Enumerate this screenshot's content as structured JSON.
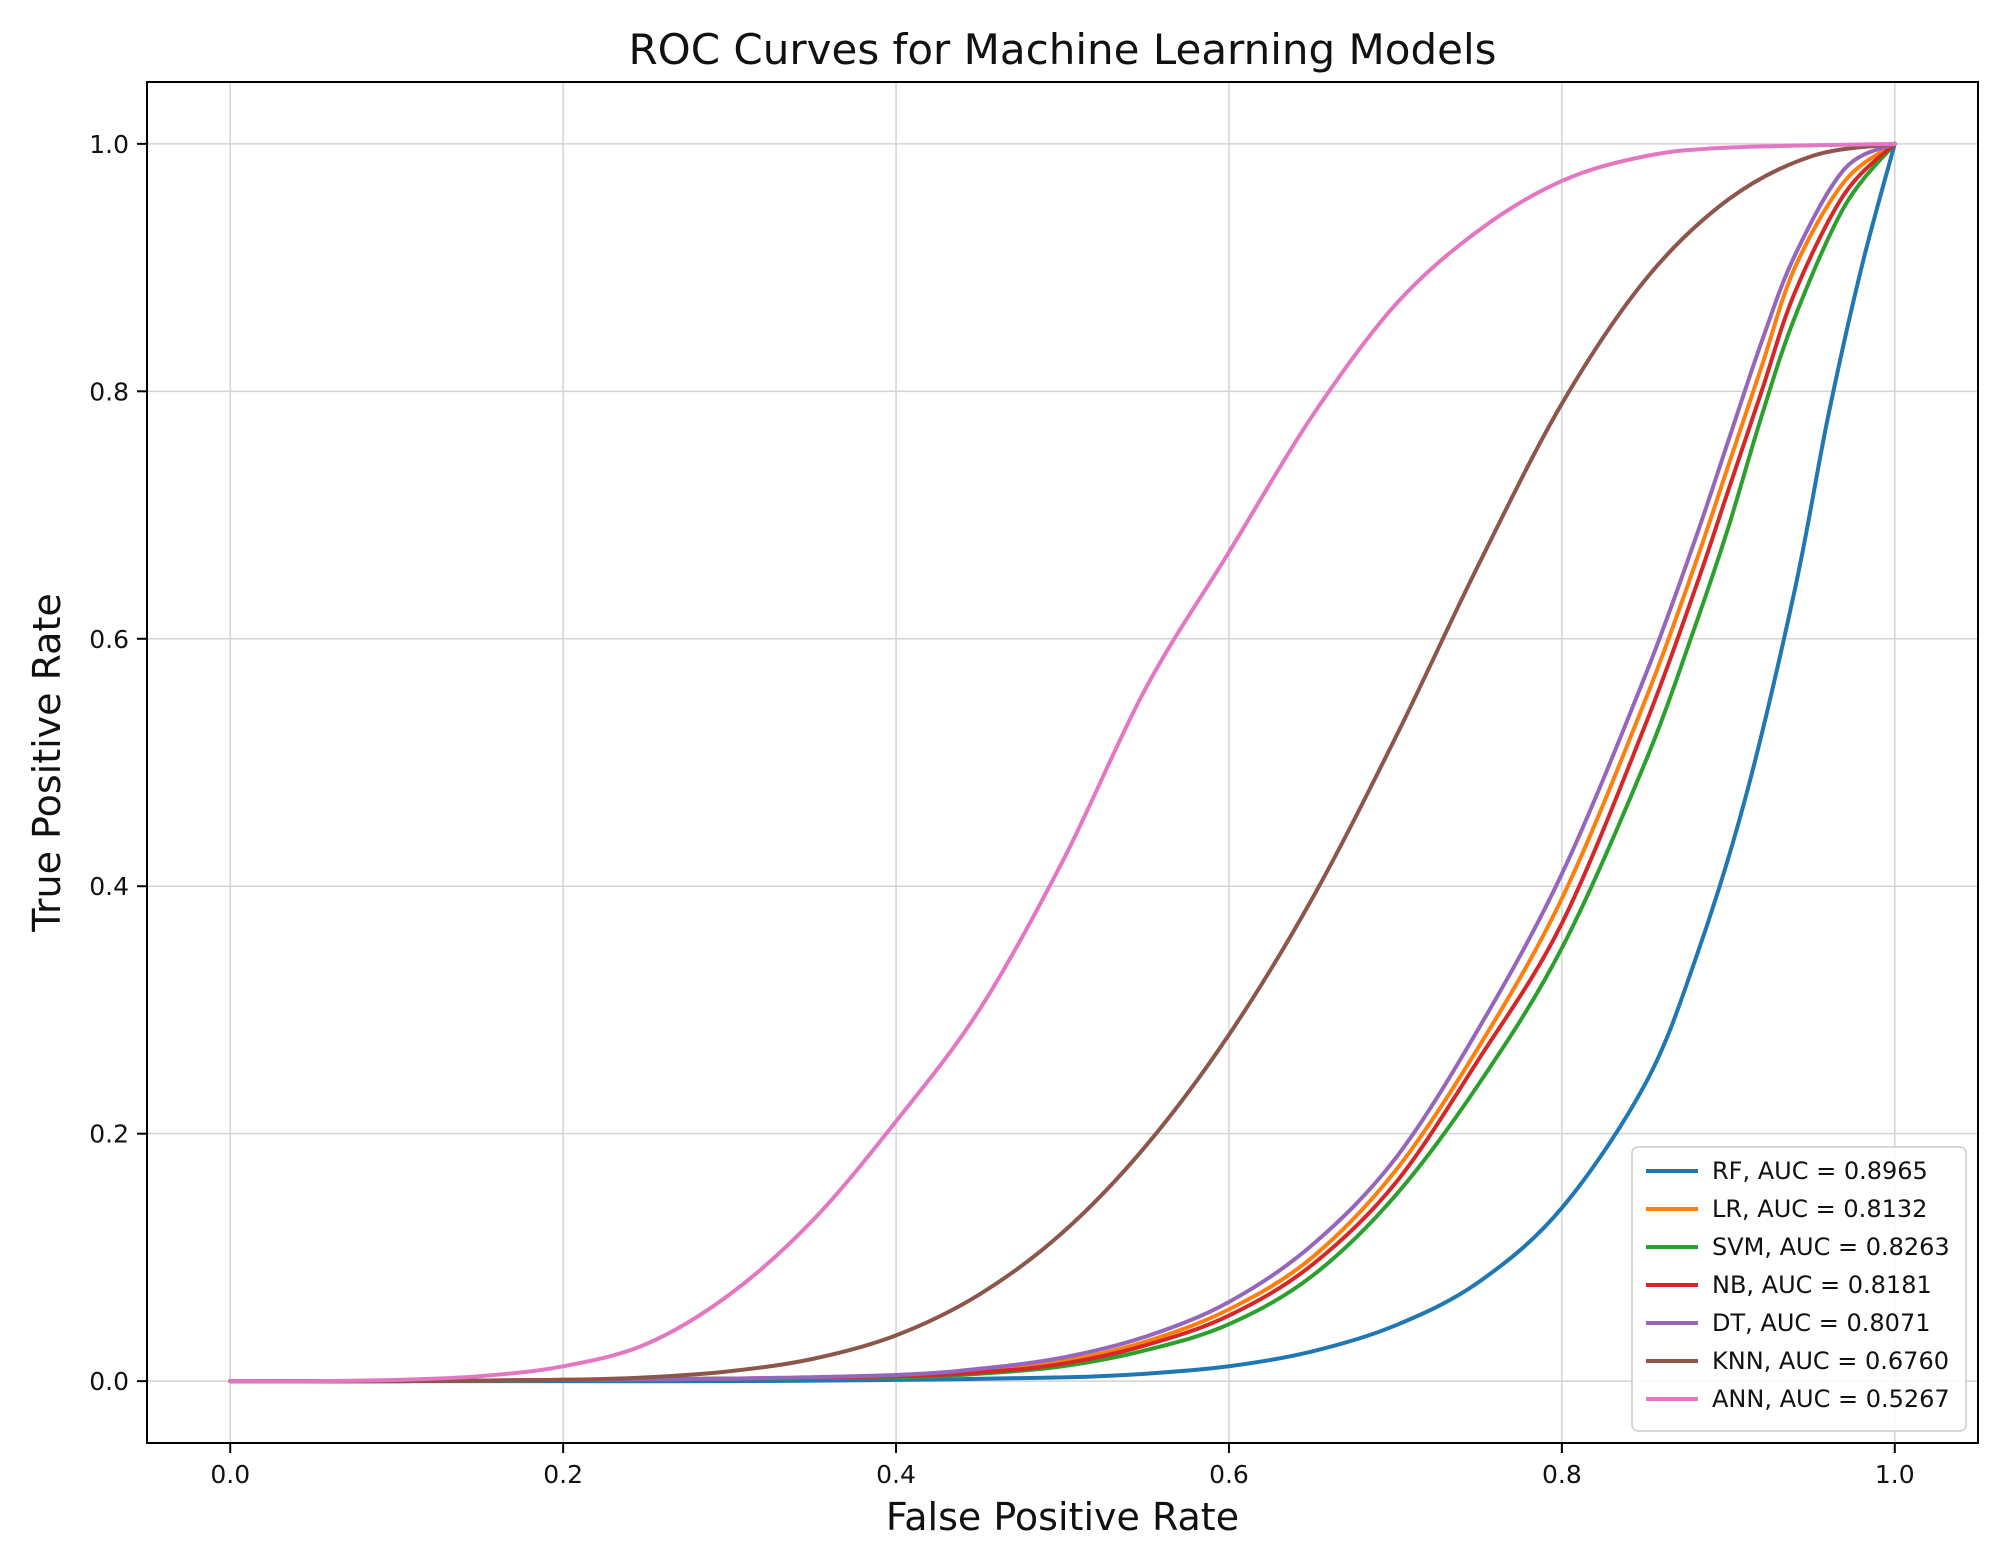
{
  "chart_data": {
    "type": "line",
    "title": "ROC Curves for Machine Learning Models",
    "xlabel": "False Positive Rate",
    "ylabel": "True Positive Rate",
    "xlim": [
      -0.05,
      1.05
    ],
    "ylim": [
      -0.05,
      1.05
    ],
    "xticks": [
      "0.0",
      "0.2",
      "0.4",
      "0.6",
      "0.8",
      "1.0"
    ],
    "yticks": [
      "0.0",
      "0.2",
      "0.4",
      "0.6",
      "0.8",
      "1.0"
    ],
    "grid": true,
    "legend_position": "lower-right",
    "series": [
      {
        "name": "RF, AUC = 0.8965",
        "color": "#1f77b4",
        "points": [
          [
            0,
            0
          ],
          [
            0.1,
            0
          ],
          [
            0.2,
            0
          ],
          [
            0.3,
            0
          ],
          [
            0.4,
            0.001
          ],
          [
            0.5,
            0.003
          ],
          [
            0.55,
            0.006
          ],
          [
            0.6,
            0.012
          ],
          [
            0.65,
            0.024
          ],
          [
            0.7,
            0.045
          ],
          [
            0.75,
            0.08
          ],
          [
            0.8,
            0.14
          ],
          [
            0.85,
            0.24
          ],
          [
            0.88,
            0.34
          ],
          [
            0.91,
            0.47
          ],
          [
            0.94,
            0.64
          ],
          [
            0.96,
            0.78
          ],
          [
            0.98,
            0.9
          ],
          [
            1.0,
            1.0
          ]
        ]
      },
      {
        "name": "LR, AUC = 0.8132",
        "color": "#ff7f0e",
        "points": [
          [
            0,
            0
          ],
          [
            0.1,
            0
          ],
          [
            0.2,
            0.001
          ],
          [
            0.3,
            0.002
          ],
          [
            0.4,
            0.004
          ],
          [
            0.45,
            0.008
          ],
          [
            0.5,
            0.016
          ],
          [
            0.55,
            0.032
          ],
          [
            0.6,
            0.058
          ],
          [
            0.65,
            0.1
          ],
          [
            0.7,
            0.17
          ],
          [
            0.75,
            0.27
          ],
          [
            0.8,
            0.39
          ],
          [
            0.85,
            0.55
          ],
          [
            0.88,
            0.66
          ],
          [
            0.9,
            0.74
          ],
          [
            0.92,
            0.82
          ],
          [
            0.94,
            0.9
          ],
          [
            0.97,
            0.97
          ],
          [
            1.0,
            1.0
          ]
        ]
      },
      {
        "name": "SVM, AUC = 0.8263",
        "color": "#2ca02c",
        "points": [
          [
            0,
            0
          ],
          [
            0.1,
            0
          ],
          [
            0.2,
            0.001
          ],
          [
            0.3,
            0.002
          ],
          [
            0.4,
            0.003
          ],
          [
            0.45,
            0.006
          ],
          [
            0.5,
            0.012
          ],
          [
            0.55,
            0.025
          ],
          [
            0.6,
            0.046
          ],
          [
            0.65,
            0.085
          ],
          [
            0.7,
            0.15
          ],
          [
            0.75,
            0.24
          ],
          [
            0.8,
            0.35
          ],
          [
            0.85,
            0.5
          ],
          [
            0.88,
            0.61
          ],
          [
            0.9,
            0.69
          ],
          [
            0.92,
            0.78
          ],
          [
            0.94,
            0.86
          ],
          [
            0.97,
            0.95
          ],
          [
            1.0,
            1.0
          ]
        ]
      },
      {
        "name": "NB, AUC = 0.8181",
        "color": "#d62728",
        "points": [
          [
            0,
            0
          ],
          [
            0.1,
            0
          ],
          [
            0.2,
            0.001
          ],
          [
            0.3,
            0.002
          ],
          [
            0.4,
            0.004
          ],
          [
            0.45,
            0.007
          ],
          [
            0.5,
            0.014
          ],
          [
            0.55,
            0.029
          ],
          [
            0.6,
            0.053
          ],
          [
            0.65,
            0.094
          ],
          [
            0.7,
            0.16
          ],
          [
            0.75,
            0.26
          ],
          [
            0.8,
            0.37
          ],
          [
            0.85,
            0.53
          ],
          [
            0.88,
            0.64
          ],
          [
            0.9,
            0.72
          ],
          [
            0.92,
            0.8
          ],
          [
            0.94,
            0.88
          ],
          [
            0.97,
            0.96
          ],
          [
            1.0,
            1.0
          ]
        ]
      },
      {
        "name": "DT, AUC = 0.8071",
        "color": "#9467bd",
        "points": [
          [
            0,
            0
          ],
          [
            0.1,
            0
          ],
          [
            0.2,
            0.001
          ],
          [
            0.3,
            0.002
          ],
          [
            0.4,
            0.005
          ],
          [
            0.45,
            0.01
          ],
          [
            0.5,
            0.019
          ],
          [
            0.55,
            0.036
          ],
          [
            0.6,
            0.064
          ],
          [
            0.65,
            0.11
          ],
          [
            0.7,
            0.18
          ],
          [
            0.75,
            0.285
          ],
          [
            0.8,
            0.41
          ],
          [
            0.85,
            0.57
          ],
          [
            0.88,
            0.68
          ],
          [
            0.9,
            0.76
          ],
          [
            0.92,
            0.84
          ],
          [
            0.94,
            0.91
          ],
          [
            0.97,
            0.98
          ],
          [
            1.0,
            1.0
          ]
        ]
      },
      {
        "name": "KNN, AUC = 0.6760",
        "color": "#8c564b",
        "points": [
          [
            0,
            0
          ],
          [
            0.1,
            0
          ],
          [
            0.2,
            0.001
          ],
          [
            0.25,
            0.003
          ],
          [
            0.3,
            0.008
          ],
          [
            0.35,
            0.018
          ],
          [
            0.4,
            0.037
          ],
          [
            0.45,
            0.07
          ],
          [
            0.5,
            0.12
          ],
          [
            0.55,
            0.19
          ],
          [
            0.6,
            0.28
          ],
          [
            0.65,
            0.39
          ],
          [
            0.7,
            0.52
          ],
          [
            0.75,
            0.66
          ],
          [
            0.8,
            0.79
          ],
          [
            0.85,
            0.89
          ],
          [
            0.9,
            0.955
          ],
          [
            0.95,
            0.99
          ],
          [
            1.0,
            1.0
          ]
        ]
      },
      {
        "name": "ANN, AUC = 0.5267",
        "color": "#e377c2",
        "points": [
          [
            0,
            0
          ],
          [
            0.05,
            0
          ],
          [
            0.1,
            0.001
          ],
          [
            0.15,
            0.004
          ],
          [
            0.2,
            0.012
          ],
          [
            0.25,
            0.03
          ],
          [
            0.3,
            0.07
          ],
          [
            0.35,
            0.13
          ],
          [
            0.4,
            0.21
          ],
          [
            0.45,
            0.3
          ],
          [
            0.5,
            0.42
          ],
          [
            0.55,
            0.56
          ],
          [
            0.6,
            0.67
          ],
          [
            0.65,
            0.78
          ],
          [
            0.7,
            0.87
          ],
          [
            0.75,
            0.93
          ],
          [
            0.8,
            0.97
          ],
          [
            0.85,
            0.99
          ],
          [
            0.9,
            0.997
          ],
          [
            1.0,
            1.0
          ]
        ]
      }
    ]
  }
}
